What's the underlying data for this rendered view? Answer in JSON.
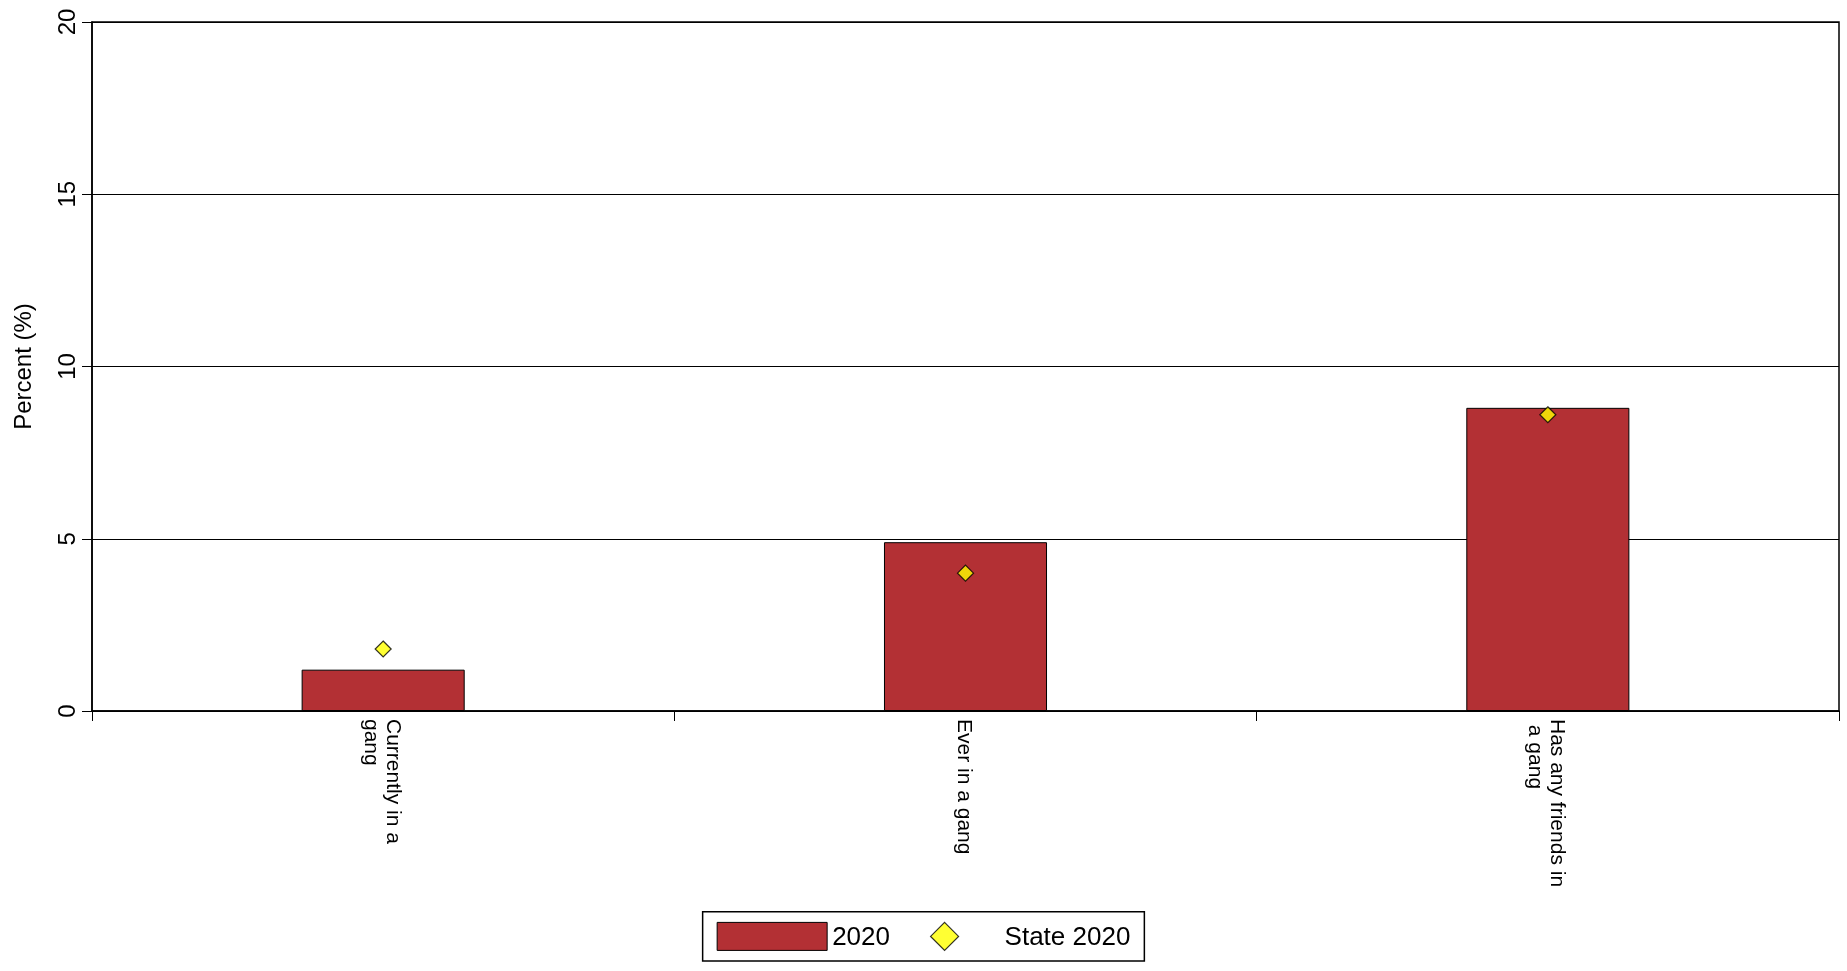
{
  "chart_data": {
    "type": "bar",
    "ylabel": "Percent (%)",
    "categories": [
      "Currently in a gang",
      "Ever in a gang",
      "Has any friends in a gang"
    ],
    "series": [
      {
        "name": "2020",
        "color": "#b33034",
        "values": [
          1.2,
          4.9,
          8.8
        ]
      },
      {
        "name": "State 2020",
        "type": "scatter",
        "marker": "diamond",
        "color": "#ffff00",
        "values": [
          1.8,
          4.0,
          8.6
        ]
      }
    ],
    "ylim": [
      0,
      20
    ],
    "yticks": [
      0,
      5,
      10,
      15,
      20
    ],
    "grid": "y",
    "legend": "bottom"
  }
}
